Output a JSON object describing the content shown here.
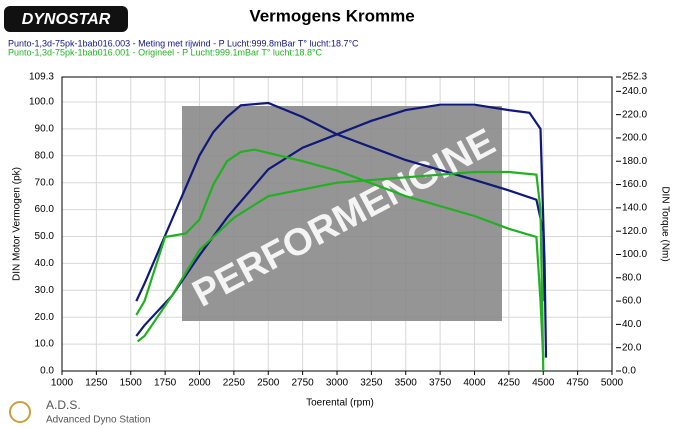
{
  "chart_data": {
    "type": "line",
    "title": "Vermogens Kromme",
    "logo": "DYNOSTAR",
    "footer_title": "A.D.S.",
    "footer_subtitle": "Advanced Dyno Station",
    "watermark": "PERFORMENGINE",
    "x_label": "Toerental (rpm)",
    "y_label": "DIN Motor Vermogen (pk)",
    "y2_label": "DIN Torque (Nm)",
    "legend_lines": [
      {
        "text": "Punto-1,3d-75pk-1bab016.003 - Meting met rijwind  - P Lucht:999.8mBar T° lucht:18.7°C",
        "color": "#10187a"
      },
      {
        "text": "Punto-1,3d-75pk-1bab016.001 - Origineel  - P Lucht:999.1mBar T° lucht:18.8°C",
        "color": "#22b022"
      }
    ],
    "xlim": [
      1000,
      5000
    ],
    "xticks": [
      1000,
      1250,
      1500,
      1750,
      2000,
      2250,
      2500,
      2750,
      3000,
      3250,
      3500,
      3750,
      4000,
      4250,
      4500,
      4750,
      5000
    ],
    "ylim": [
      0,
      109.3
    ],
    "yticks": [
      {
        "value": 0,
        "label": "0.0"
      },
      {
        "value": 10,
        "label": "10.0"
      },
      {
        "value": 20,
        "label": "20.0"
      },
      {
        "value": 30,
        "label": "30.0"
      },
      {
        "value": 40,
        "label": "40.0"
      },
      {
        "value": 50,
        "label": "50.0"
      },
      {
        "value": 60,
        "label": "60.0"
      },
      {
        "value": 70,
        "label": "70.0"
      },
      {
        "value": 80,
        "label": "80.0"
      },
      {
        "value": 90,
        "label": "90.0"
      },
      {
        "value": 100,
        "label": "100.0"
      },
      {
        "value": 109.3,
        "label": "109.3"
      }
    ],
    "y2lim": [
      0,
      252.3
    ],
    "y2ticks": [
      {
        "value": 0,
        "label": "0.0"
      },
      {
        "value": 20,
        "label": "20.0"
      },
      {
        "value": 40,
        "label": "40.0"
      },
      {
        "value": 60,
        "label": "60.0"
      },
      {
        "value": 80,
        "label": "80.0"
      },
      {
        "value": 100,
        "label": "100.0"
      },
      {
        "value": 120,
        "label": "120.0"
      },
      {
        "value": 140,
        "label": "140.0"
      },
      {
        "value": 160,
        "label": "160.0"
      },
      {
        "value": 180,
        "label": "180.0"
      },
      {
        "value": 200,
        "label": "200.0"
      },
      {
        "value": 220,
        "label": "220.0"
      },
      {
        "value": 240,
        "label": "240.0"
      },
      {
        "value": 252.3,
        "label": "252.3"
      }
    ],
    "grid": true,
    "series": [
      {
        "name": "Meting met rijwind vermogen",
        "color": "#10187a",
        "axis": "y",
        "x": [
          1540,
          1600,
          1800,
          2000,
          2200,
          2500,
          2750,
          3000,
          3250,
          3500,
          3750,
          4000,
          4250,
          4400,
          4480,
          4510,
          4520
        ],
        "values": [
          13,
          17,
          28,
          43,
          57,
          75,
          83,
          88,
          93,
          97,
          99,
          99,
          97,
          96,
          90,
          40,
          5
        ]
      },
      {
        "name": "Meting met rijwind koppel",
        "color": "#10187a",
        "axis": "y2",
        "x": [
          1540,
          1600,
          1800,
          2000,
          2100,
          2200,
          2300,
          2500,
          2750,
          3000,
          3500,
          4000,
          4250,
          4450,
          4500,
          4510
        ],
        "values": [
          60,
          75,
          130,
          185,
          205,
          218,
          228,
          230,
          218,
          203,
          181,
          164,
          155,
          147,
          120,
          60
        ]
      },
      {
        "name": "Origineel vermogen",
        "color": "#22b022",
        "axis": "y",
        "x": [
          1550,
          1600,
          1800,
          2000,
          2250,
          2500,
          3000,
          3500,
          4000,
          4250,
          4450,
          4480,
          4500
        ],
        "values": [
          11,
          13,
          28,
          45,
          57,
          65,
          70,
          72,
          74,
          74,
          73,
          60,
          0
        ]
      },
      {
        "name": "Origineel koppel",
        "color": "#22b022",
        "axis": "y2",
        "x": [
          1540,
          1600,
          1750,
          1900,
          2000,
          2100,
          2200,
          2300,
          2400,
          2750,
          3000,
          3500,
          4000,
          4250,
          4450,
          4480,
          4500
        ],
        "values": [
          48,
          60,
          115,
          118,
          130,
          160,
          180,
          188,
          190,
          180,
          172,
          150,
          133,
          122,
          115,
          60,
          10
        ]
      }
    ]
  }
}
